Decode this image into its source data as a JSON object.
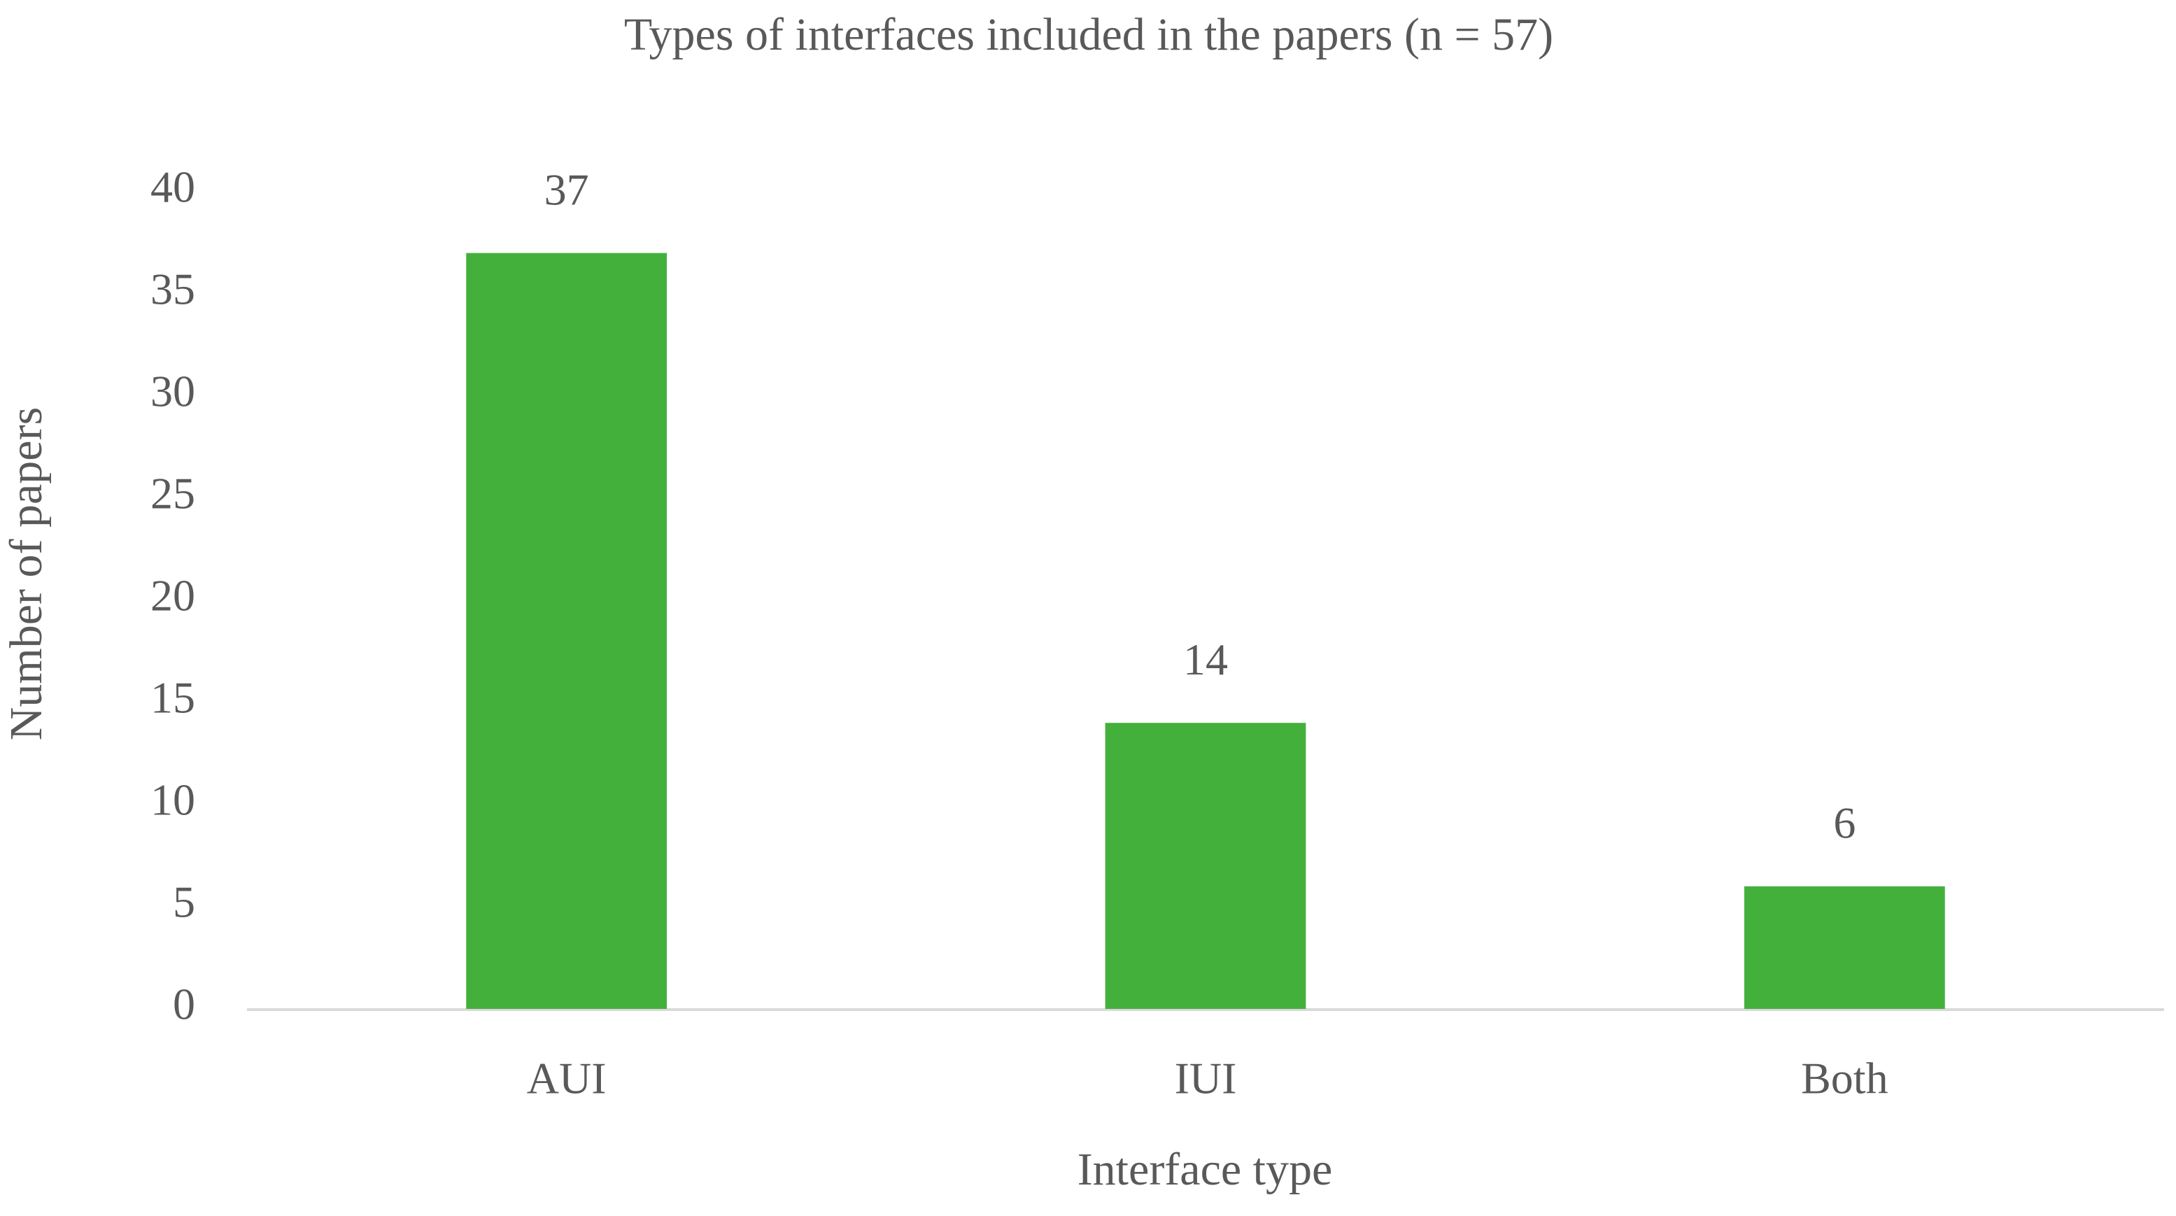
{
  "chart_data": {
    "type": "bar",
    "title": "Types of interfaces included in the papers (n = 57)",
    "x_label": "Interface type",
    "y_label": "Number of papers",
    "categories": [
      "AUI",
      "IUI",
      "Both"
    ],
    "values": [
      37,
      14,
      6
    ],
    "color": "#44b03c",
    "ylim": [
      0,
      40
    ],
    "yticks": [
      0,
      5,
      10,
      15,
      20,
      25,
      30,
      35,
      40
    ],
    "grid": false
  }
}
